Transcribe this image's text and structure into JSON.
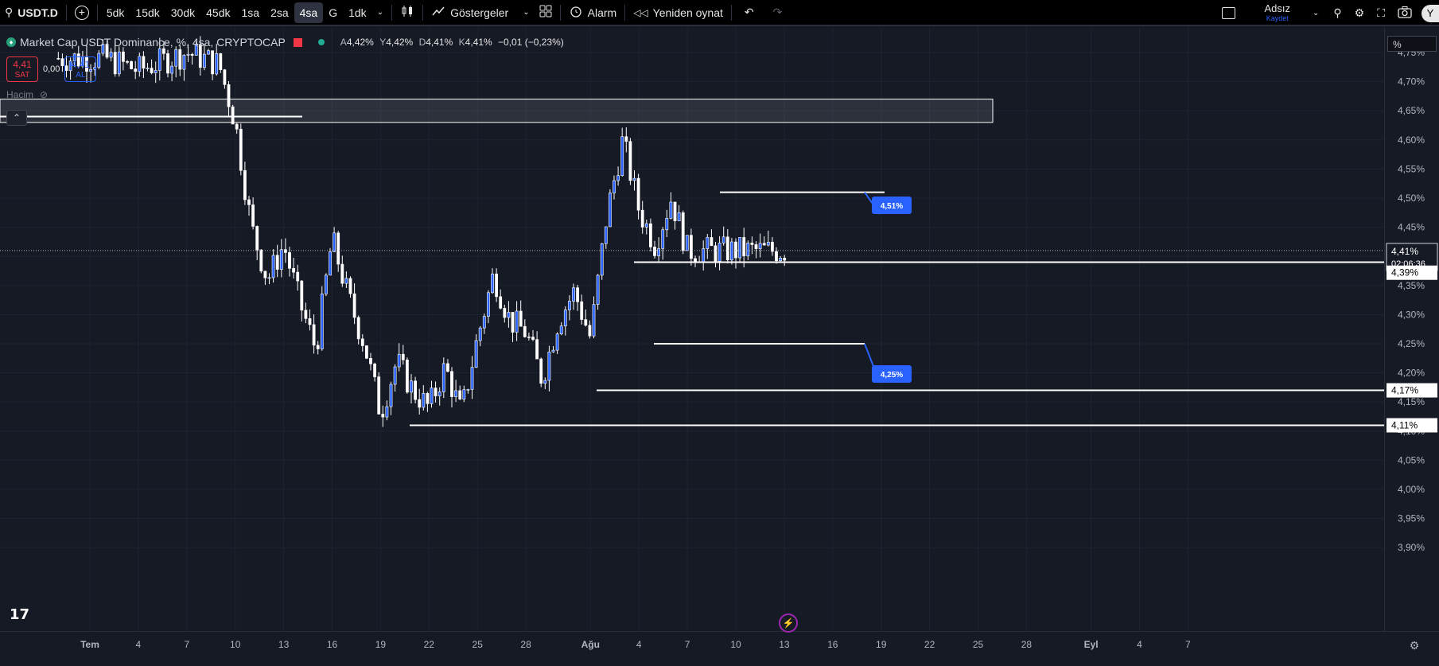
{
  "toolbar": {
    "symbol": "USDT.D",
    "timeframes": [
      "5dk",
      "15dk",
      "30dk",
      "45dk",
      "1sa",
      "2sa",
      "4sa",
      "G",
      "1dk"
    ],
    "active_timeframe": "4sa",
    "indicators_label": "Göstergeler",
    "alarm_label": "Alarm",
    "replay_label": "Yeniden oynat",
    "layout_name": "Adsız",
    "save_label": "Kaydet",
    "avatar_letter": "Y"
  },
  "legend": {
    "title": "Market Cap USDT Dominance, %, 4sa, CRYPTOCAP",
    "open_label": "A",
    "open": "4,42%",
    "high_label": "Y",
    "high": "4,42%",
    "low_label": "D",
    "low": "4,41%",
    "close_label": "K",
    "close": "4,41%",
    "change": "−0,01 (−0,23%)",
    "sell_price": "4,41",
    "sell_label": "SAT",
    "spread": "0,00",
    "buy_price": "4,41",
    "buy_label": "AL",
    "volume_label": "Hacim"
  },
  "price_axis": {
    "unit": "%",
    "ticks": [
      "4,75%",
      "4,70%",
      "4,65%",
      "4,60%",
      "4,55%",
      "4,50%",
      "4,45%",
      "4,40%",
      "4,35%",
      "4,30%",
      "4,25%",
      "4,20%",
      "4,15%",
      "4,10%",
      "4,05%",
      "4,00%",
      "3,95%",
      "3,90%"
    ],
    "current_price": "4,41%",
    "countdown": "02:06:36",
    "level_labels": [
      "4,39%",
      "4,17%",
      "4,11%"
    ]
  },
  "time_axis": {
    "labels": [
      "Tem",
      "4",
      "7",
      "10",
      "13",
      "16",
      "19",
      "22",
      "25",
      "28",
      "Ağu",
      "4",
      "7",
      "10",
      "13",
      "16",
      "19",
      "22",
      "25",
      "28",
      "Eyl",
      "4",
      "7"
    ]
  },
  "annotations": {
    "callout_top": "4,51%",
    "callout_bottom": "4,25%"
  },
  "colors": {
    "background": "#161a25",
    "candle_up": "#2962ff",
    "candle_down": "#ffffff",
    "sell": "#f23645",
    "buy": "#2962ff",
    "callout": "#2962ff"
  },
  "chart_data": {
    "type": "candlestick",
    "x_axis": "dates",
    "y_range": [
      3.9,
      4.77
    ],
    "drawn_levels": [
      4.51,
      4.39,
      4.25,
      4.17,
      4.11
    ],
    "highlight_zone": [
      4.63,
      4.67
    ],
    "close_path": [
      [
        "Tem 2",
        4.74
      ],
      [
        "Tem 4",
        4.72
      ],
      [
        "Tem 7",
        4.75
      ],
      [
        "Tem 9",
        4.73
      ],
      [
        "Tem 10",
        4.63
      ],
      [
        "Tem 11",
        4.45
      ],
      [
        "Tem 12",
        4.36
      ],
      [
        "Tem 13",
        4.42
      ],
      [
        "Tem 14",
        4.32
      ],
      [
        "Tem 15",
        4.24
      ],
      [
        "Tem 16",
        4.43
      ],
      [
        "Tem 17",
        4.33
      ],
      [
        "Tem 18",
        4.25
      ],
      [
        "Tem 19",
        4.13
      ],
      [
        "Tem 20",
        4.22
      ],
      [
        "Tem 21",
        4.17
      ],
      [
        "Tem 22",
        4.14
      ],
      [
        "Tem 23",
        4.21
      ],
      [
        "Tem 24",
        4.13
      ],
      [
        "Tem 25",
        4.26
      ],
      [
        "Tem 26",
        4.37
      ],
      [
        "Tem 27",
        4.29
      ],
      [
        "Tem 28",
        4.27
      ],
      [
        "Tem 29",
        4.19
      ],
      [
        "Tem 30",
        4.29
      ],
      [
        "Tem 31",
        4.34
      ],
      [
        "Ağu 1",
        4.26
      ],
      [
        "Ağu 2",
        4.47
      ],
      [
        "Ağu 3",
        4.6
      ],
      [
        "Ağu 4",
        4.48
      ],
      [
        "Ağu 5",
        4.42
      ],
      [
        "Ağu 6",
        4.5
      ],
      [
        "Ağu 7",
        4.41
      ]
    ]
  }
}
